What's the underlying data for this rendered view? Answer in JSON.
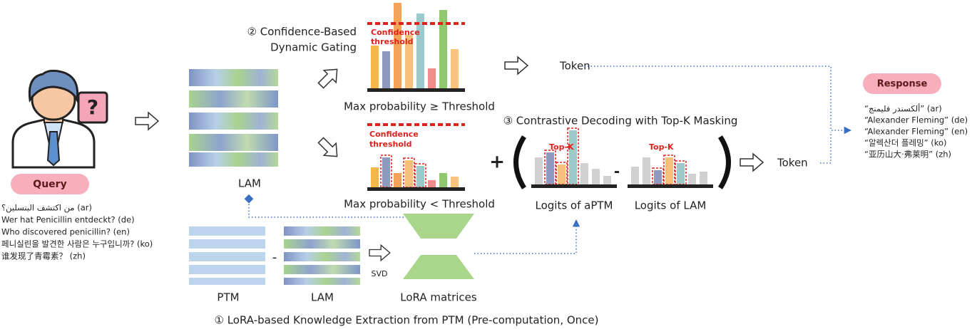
{
  "query": {
    "label": "Query",
    "lines": [
      "من اكتشف البنسلين؟ (ar)",
      "Wer hat Penicillin entdeckt? (de)",
      "Who discovered penicillin? (en)",
      "페니실린을 발견한 사람은 누구입니까? (ko)",
      "谁发现了青霉素？ (zh)"
    ]
  },
  "response": {
    "label": "Response",
    "lines": [
      "“ألكسندر فليمنج” (ar)",
      "“Alexander Fleming” (de)",
      "“Alexander Fleming” (en)",
      "“알렉산더 플레밍” (ko)",
      "“亚历山大·弗莱明” (zh)"
    ]
  },
  "gating": {
    "title": [
      "② Confidence-Based",
      "Dynamic Gating"
    ],
    "high": {
      "threshold_label": [
        "Confidence",
        "threshold"
      ],
      "condition": "Max probability ≥ Threshold",
      "output": "Token"
    },
    "low": {
      "threshold_label": [
        "Confidence",
        "threshold"
      ],
      "condition": "Max probability < Threshold"
    }
  },
  "contrastive": {
    "title": "③ Contrastive Decoding with Top-K Masking",
    "plus": "+",
    "minus": "-",
    "aptm": {
      "topk": "Top-K",
      "label": "Logits of aPTM"
    },
    "lam": {
      "topk": "Top-K",
      "label": "Logits of LAM"
    },
    "output": "Token"
  },
  "extraction": {
    "title": "① LoRA-based Knowledge Extraction from PTM (Pre-computation, Once)",
    "lam_top": "LAM",
    "ptm": "PTM",
    "minus": "-",
    "lam": "LAM",
    "svd": "SVD",
    "lora": "LoRA matrices"
  }
}
